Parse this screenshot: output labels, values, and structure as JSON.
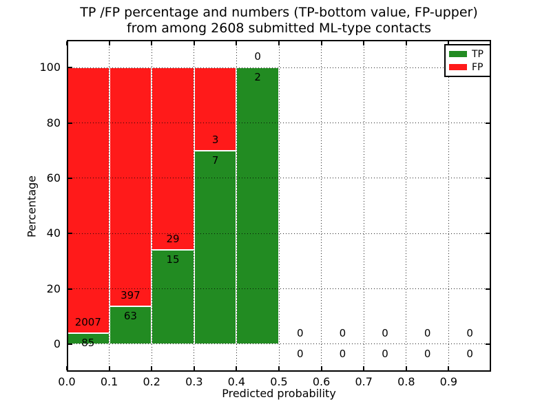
{
  "chart_data": {
    "type": "bar",
    "stacked": true,
    "title_lines": [
      "TP /FP percentage and numbers (TP-bottom value, FP-upper)",
      "from among 2608 submitted ML-type contacts"
    ],
    "xlabel": "Predicted probability",
    "ylabel": "Percentage",
    "xlim": [
      0.0,
      1.0
    ],
    "ylim": [
      -10,
      110
    ],
    "x_tick_labels": [
      "0.0",
      "0.1",
      "0.2",
      "0.3",
      "0.4",
      "0.5",
      "0.6",
      "0.7",
      "0.8",
      "0.9"
    ],
    "y_ticks": [
      0,
      20,
      40,
      60,
      80,
      100
    ],
    "grid": "dotted",
    "total_contacts": 2608,
    "colors": {
      "tp": "#228B22",
      "fp": "#FF1A1A"
    },
    "legend": {
      "position": "upper right",
      "entries": [
        {
          "label": "TP",
          "color": "#228B22"
        },
        {
          "label": "FP",
          "color": "#FF1A1A"
        }
      ]
    },
    "bins": [
      {
        "range": [
          0.0,
          0.1
        ],
        "tp": 85,
        "fp": 2007,
        "tp_pct": 4.06,
        "fp_pct": 95.94
      },
      {
        "range": [
          0.1,
          0.2
        ],
        "tp": 63,
        "fp": 397,
        "tp_pct": 13.7,
        "fp_pct": 86.3
      },
      {
        "range": [
          0.2,
          0.3
        ],
        "tp": 15,
        "fp": 29,
        "tp_pct": 34.09,
        "fp_pct": 65.91
      },
      {
        "range": [
          0.3,
          0.4
        ],
        "tp": 7,
        "fp": 3,
        "tp_pct": 70.0,
        "fp_pct": 30.0
      },
      {
        "range": [
          0.4,
          0.5
        ],
        "tp": 2,
        "fp": 0,
        "tp_pct": 100.0,
        "fp_pct": 0.0
      },
      {
        "range": [
          0.5,
          0.6
        ],
        "tp": 0,
        "fp": 0,
        "tp_pct": 0,
        "fp_pct": 0
      },
      {
        "range": [
          0.6,
          0.7
        ],
        "tp": 0,
        "fp": 0,
        "tp_pct": 0,
        "fp_pct": 0
      },
      {
        "range": [
          0.7,
          0.8
        ],
        "tp": 0,
        "fp": 0,
        "tp_pct": 0,
        "fp_pct": 0
      },
      {
        "range": [
          0.8,
          0.9
        ],
        "tp": 0,
        "fp": 0,
        "tp_pct": 0,
        "fp_pct": 0
      },
      {
        "range": [
          0.9,
          1.0
        ],
        "tp": 0,
        "fp": 0,
        "tp_pct": 0,
        "fp_pct": 0
      }
    ]
  }
}
